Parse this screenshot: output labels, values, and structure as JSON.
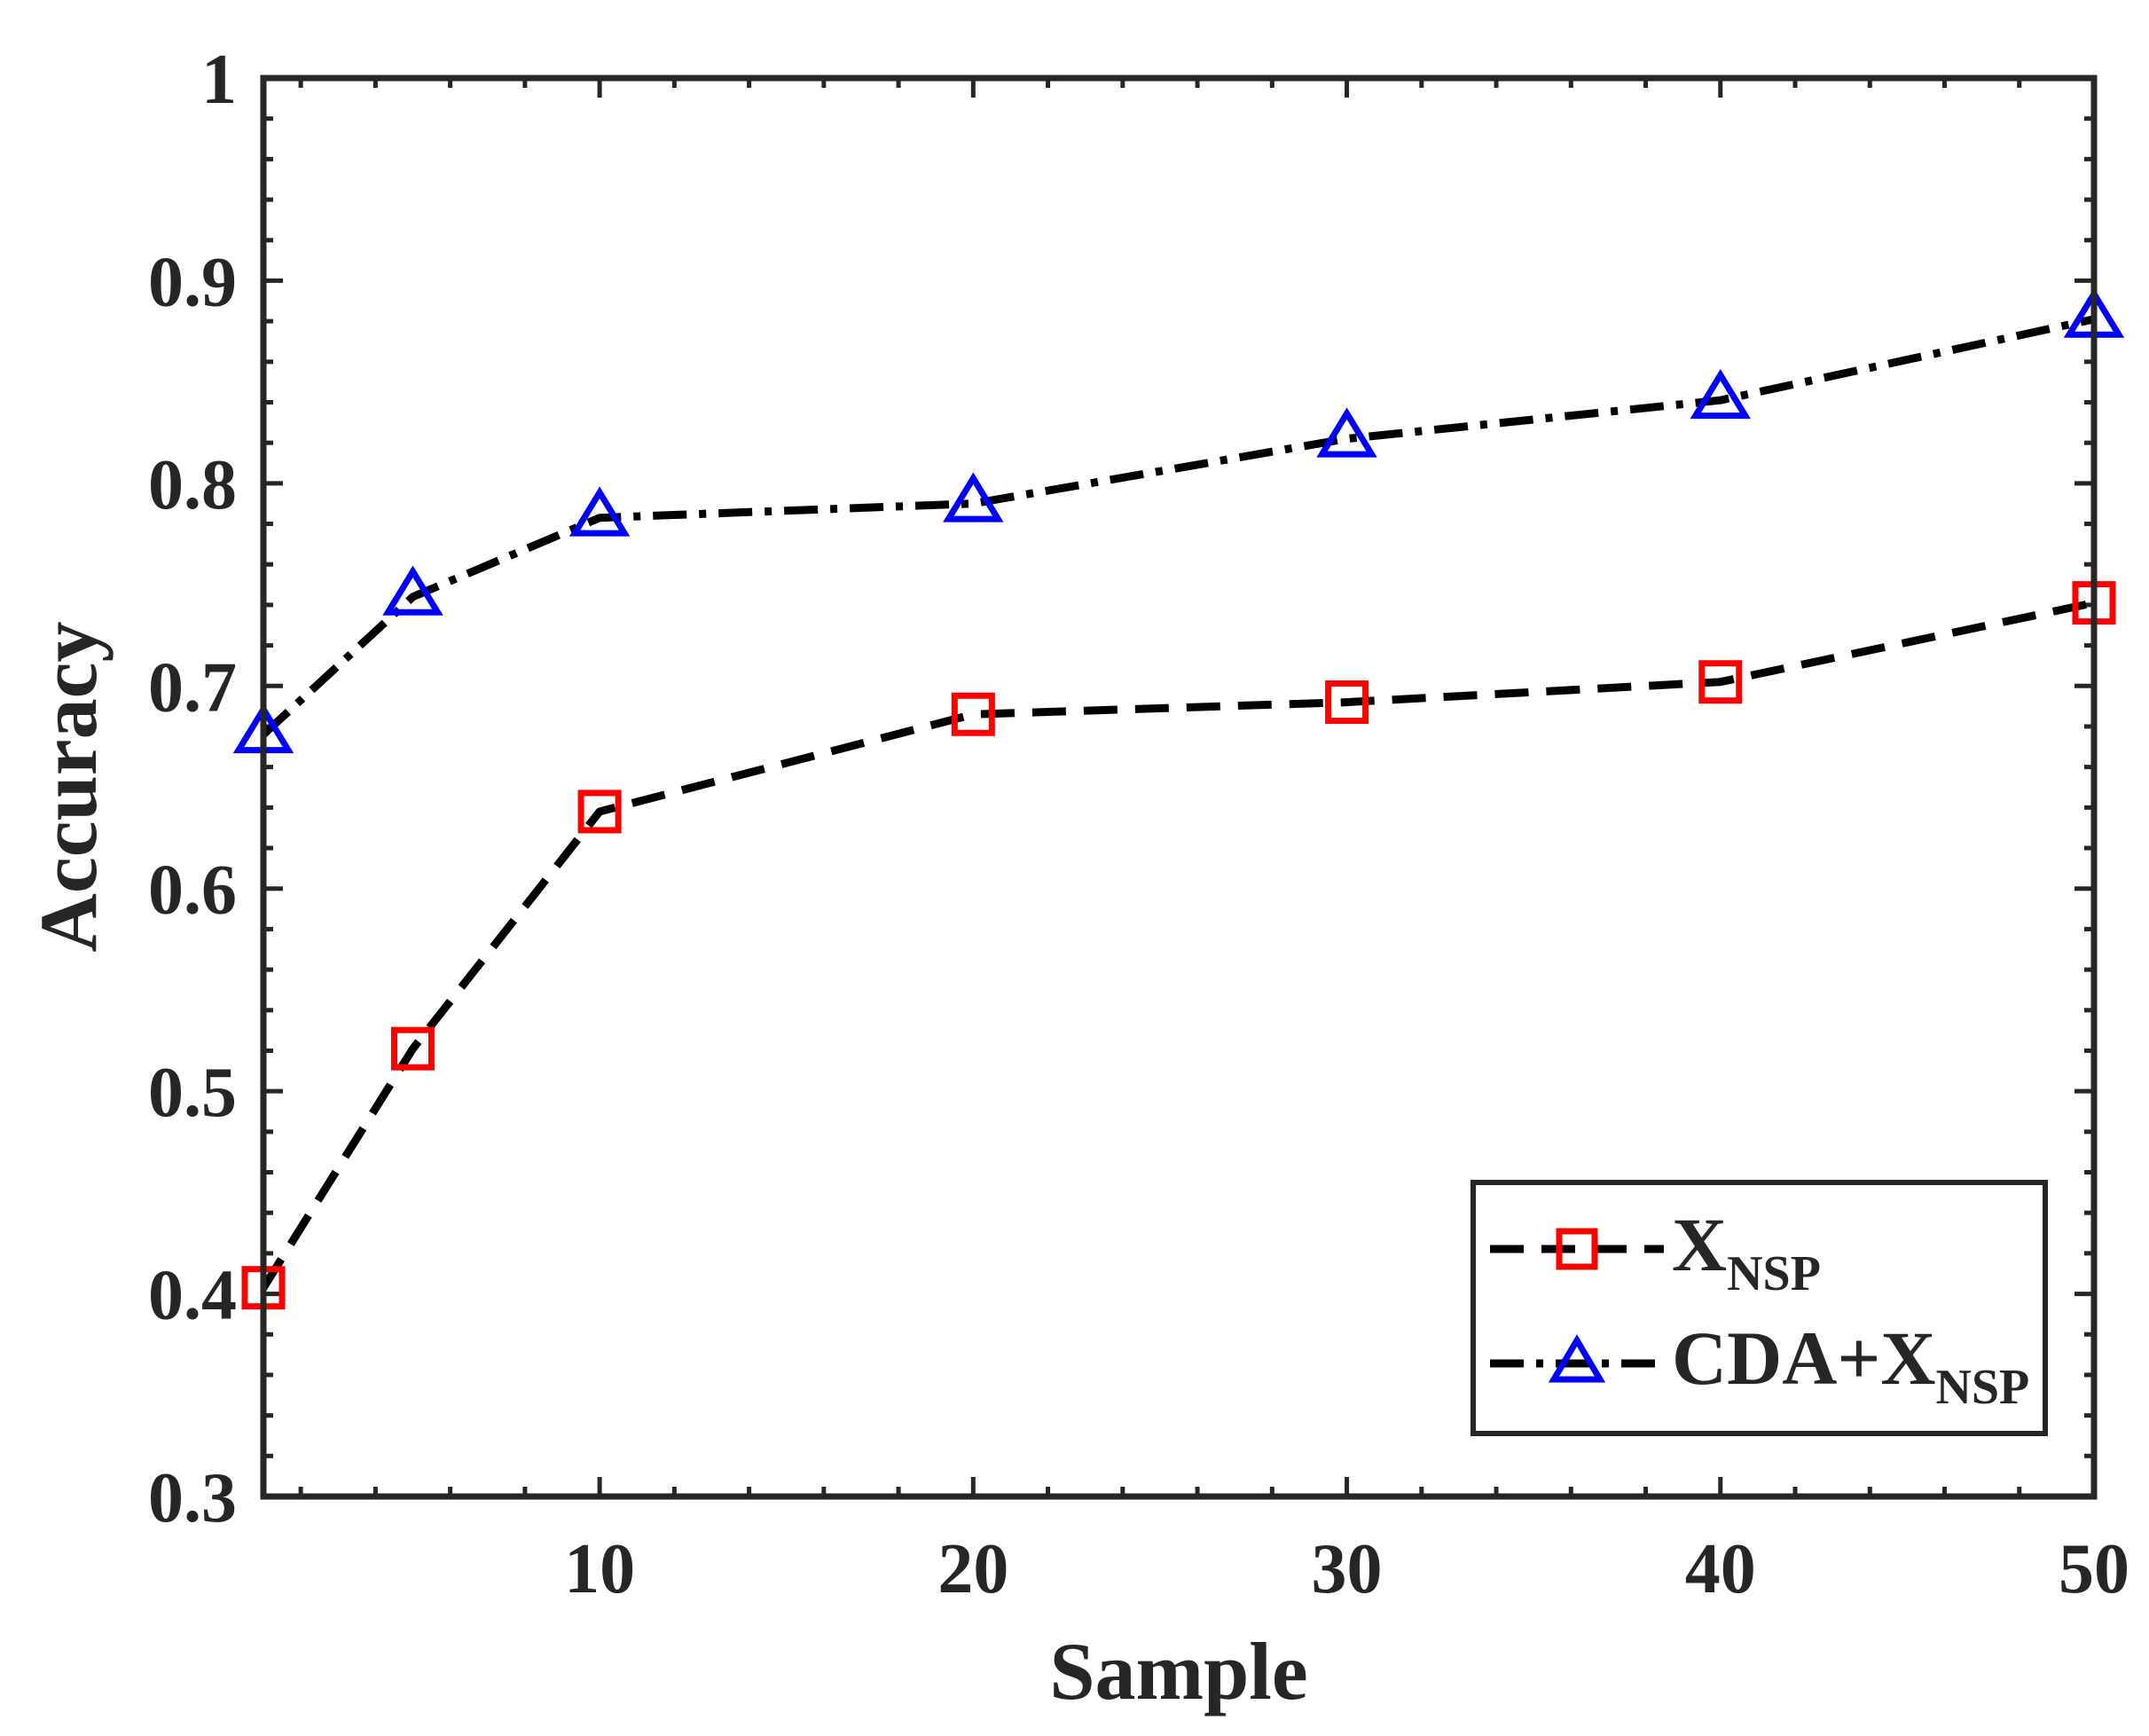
{
  "chart_data": {
    "type": "line",
    "title": "",
    "xlabel": "Sample",
    "ylabel": "Accuracy",
    "xlim": [
      1,
      50
    ],
    "ylim": [
      0.3,
      1
    ],
    "xticks": [
      10,
      20,
      30,
      40,
      50
    ],
    "yticks": [
      0.3,
      0.4,
      0.5,
      0.6,
      0.7,
      0.8,
      0.9,
      1
    ],
    "ytick_labels": [
      "0.3",
      "0.4",
      "0.5",
      "0.6",
      "0.7",
      "0.8",
      "0.9",
      "1"
    ],
    "x": [
      1,
      5,
      10,
      20,
      30,
      40,
      50
    ],
    "series": [
      {
        "name": "XNSP",
        "legend_main": "X",
        "legend_sub": "NSP",
        "marker": "square",
        "line_style": "dashed",
        "color": "#000000",
        "marker_color": "#ff0000",
        "values": [
          0.403,
          0.521,
          0.638,
          0.686,
          0.692,
          0.702,
          0.741
        ]
      },
      {
        "name": "CDA+XNSP",
        "legend_main": "CDA+X",
        "legend_sub": "NSP",
        "marker": "triangle",
        "line_style": "dash-dot",
        "color": "#000000",
        "marker_color": "#0000ff",
        "values": [
          0.676,
          0.744,
          0.783,
          0.79,
          0.822,
          0.841,
          0.881
        ]
      }
    ],
    "legend_position": "bottom-right",
    "grid": false
  }
}
